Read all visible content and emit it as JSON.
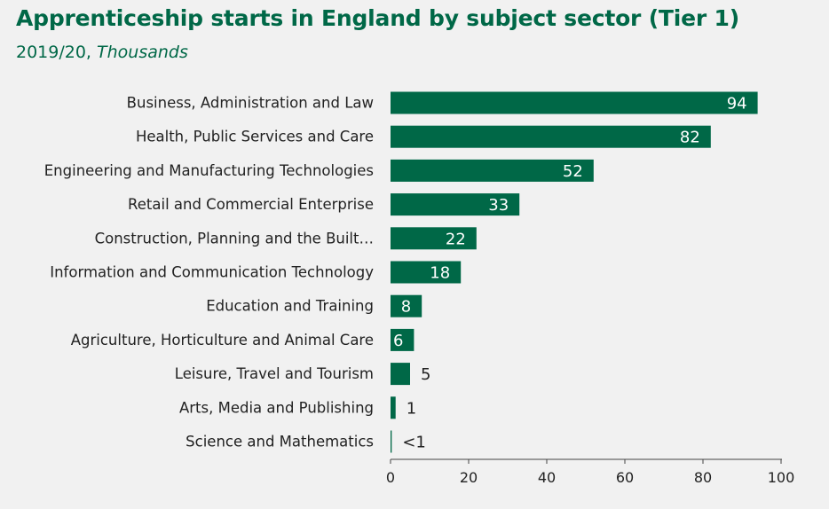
{
  "title": "Apprenticeship starts in England by subject sector (Tier 1)",
  "subtitle_year": "2019/20,",
  "subtitle_unit": "Thousands",
  "colors": {
    "bar": "#006847",
    "title": "#006847",
    "text": "#222222",
    "background": "#f1f1f1"
  },
  "chart_data": {
    "type": "bar",
    "orientation": "horizontal",
    "categories": [
      "Business, Administration and Law",
      "Health, Public Services and Care",
      "Engineering and Manufacturing Technologies",
      "Retail and Commercial Enterprise",
      "Construction, Planning and the Built…",
      "Information and Communication Technology",
      "Education and Training",
      "Agriculture, Horticulture and Animal Care",
      "Leisure, Travel and Tourism",
      "Arts, Media and Publishing",
      "Science and Mathematics"
    ],
    "values": [
      94,
      82,
      52,
      33,
      22,
      18,
      8,
      6,
      5,
      1.3,
      0.3
    ],
    "data_labels": [
      "94",
      "82",
      "52",
      "33",
      "22",
      "18",
      "8",
      "6",
      "5",
      "1",
      "<1"
    ],
    "xlim": [
      0,
      100
    ],
    "xticks": [
      "0",
      "20",
      "40",
      "60",
      "80",
      "100"
    ],
    "grid": false
  }
}
